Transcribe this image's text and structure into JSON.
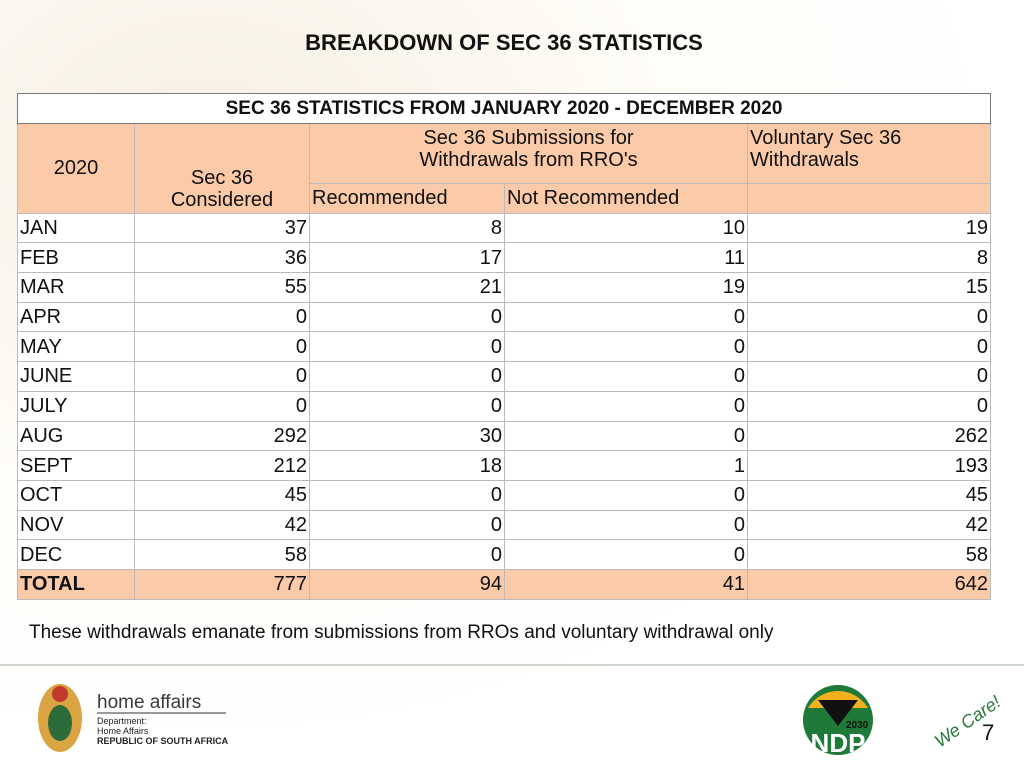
{
  "title": "BREAKDOWN OF SEC 36 STATISTICS",
  "table": {
    "caption": "SEC 36 STATISTICS FROM JANUARY 2020  - DECEMBER  2020",
    "header": {
      "year": "2020",
      "considered": "Sec 36 Considered",
      "submissions": "Sec 36 Submissions for Withdrawals from RRO's",
      "recommended": "Recommended",
      "not_recommended": "Not Recommended",
      "voluntary": "Voluntary Sec 36 Withdrawals"
    },
    "rows": [
      [
        "JAN",
        37,
        8,
        10,
        19
      ],
      [
        "FEB",
        36,
        17,
        11,
        8
      ],
      [
        "MAR",
        55,
        21,
        19,
        15
      ],
      [
        "APR",
        0,
        0,
        0,
        0
      ],
      [
        "MAY",
        0,
        0,
        0,
        0
      ],
      [
        "JUNE",
        0,
        0,
        0,
        0
      ],
      [
        "JULY",
        0,
        0,
        0,
        0
      ],
      [
        "AUG",
        292,
        30,
        0,
        262
      ],
      [
        "SEPT",
        212,
        18,
        1,
        193
      ],
      [
        "OCT",
        45,
        0,
        0,
        45
      ],
      [
        "NOV",
        42,
        0,
        0,
        42
      ],
      [
        "DEC",
        58,
        0,
        0,
        58
      ]
    ],
    "total": [
      "TOTAL",
      777,
      94,
      41,
      642
    ]
  },
  "footnote": "These withdrawals emanate from submissions from RROs and voluntary withdrawal only",
  "footer": {
    "brand": "home affairs",
    "dept_label": "Department:",
    "dept_name": "Home Affairs",
    "country": "REPUBLIC OF SOUTH AFRICA",
    "ndp_year": "2030",
    "ndp": "NDP",
    "slogan": "We Care!",
    "page": "7"
  }
}
